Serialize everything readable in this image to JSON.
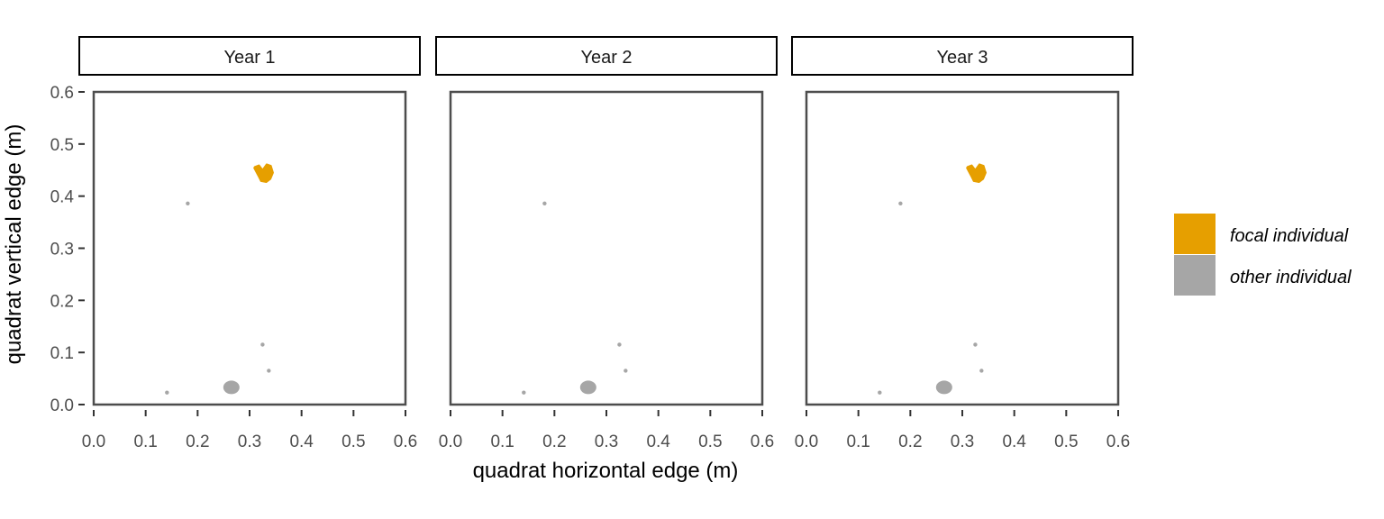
{
  "chart_data": {
    "type": "scatter",
    "xlabel": "quadrat horizontal edge (m)",
    "ylabel": "quadrat vertical edge (m)",
    "xlim": [
      0,
      0.6
    ],
    "ylim": [
      0,
      0.6
    ],
    "ticks": [
      "0.0",
      "0.1",
      "0.2",
      "0.3",
      "0.4",
      "0.5",
      "0.6"
    ],
    "grid": false,
    "legend_position": "right",
    "legend": [
      {
        "label": "focal individual",
        "color": "#E69F00"
      },
      {
        "label": "other individual",
        "color": "#A6A6A6"
      }
    ],
    "panels": [
      {
        "title": "Year 1",
        "focal": {
          "x": 0.328,
          "y": 0.443
        },
        "others": [
          {
            "x": 0.181,
            "y": 0.386
          },
          {
            "x": 0.325,
            "y": 0.115
          },
          {
            "x": 0.337,
            "y": 0.065
          },
          {
            "x": 0.141,
            "y": 0.023
          },
          {
            "x": 0.265,
            "y": 0.033
          }
        ]
      },
      {
        "title": "Year 2",
        "focal": null,
        "others": [
          {
            "x": 0.181,
            "y": 0.386
          },
          {
            "x": 0.325,
            "y": 0.115
          },
          {
            "x": 0.337,
            "y": 0.065
          },
          {
            "x": 0.141,
            "y": 0.023
          },
          {
            "x": 0.265,
            "y": 0.033
          }
        ]
      },
      {
        "title": "Year 3",
        "focal": {
          "x": 0.328,
          "y": 0.443
        },
        "others": [
          {
            "x": 0.181,
            "y": 0.386
          },
          {
            "x": 0.325,
            "y": 0.115
          },
          {
            "x": 0.337,
            "y": 0.065
          },
          {
            "x": 0.141,
            "y": 0.023
          },
          {
            "x": 0.265,
            "y": 0.033
          }
        ]
      }
    ]
  }
}
